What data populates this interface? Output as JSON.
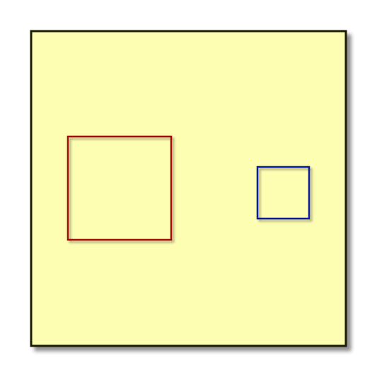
{
  "diagram": {
    "background_color": "#ffffff",
    "panel": {
      "fill": "#fefeb2",
      "stroke": "#1a1f00",
      "shadow": true
    },
    "shapes": [
      {
        "id": "large-square",
        "kind": "square",
        "stroke": "#a30d0d"
      },
      {
        "id": "small-square",
        "kind": "square",
        "stroke": "#0d1a9e"
      }
    ],
    "arrow": {
      "from": "large-square",
      "to": "small-square",
      "color": "#000000"
    }
  }
}
